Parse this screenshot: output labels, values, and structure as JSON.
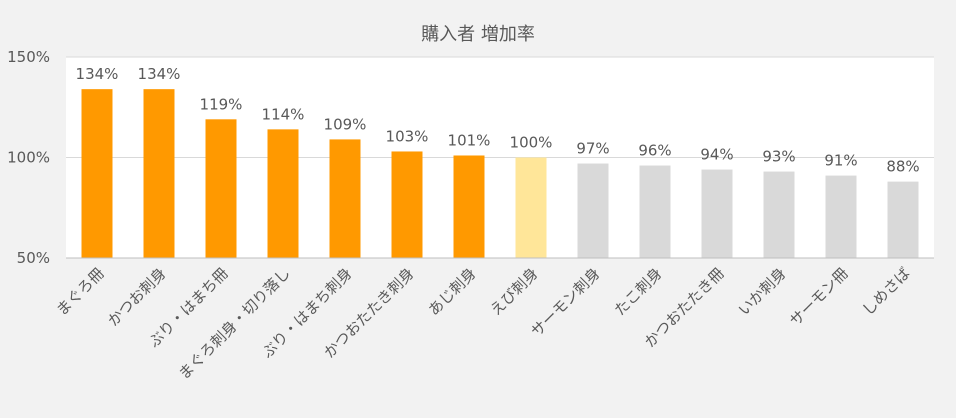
{
  "chart_data": {
    "type": "bar",
    "title": "購入者 増加率",
    "categories": [
      "まぐろ冊",
      "かつお刺身",
      "ぶり・はまち冊",
      "まぐろ刺身・切り落し",
      "ぶり・はまち刺身",
      "かつおたたき刺身",
      "あじ刺身",
      "えび刺身",
      "サーモン刺身",
      "たこ刺身",
      "かつおたたき冊",
      "いか刺身",
      "サーモン冊",
      "しめさば"
    ],
    "values": [
      134,
      134,
      119,
      114,
      109,
      103,
      101,
      100,
      97,
      96,
      94,
      93,
      91,
      88
    ],
    "data_labels": [
      "134%",
      "134%",
      "119%",
      "114%",
      "109%",
      "103%",
      "101%",
      "100%",
      "97%",
      "96%",
      "94%",
      "93%",
      "91%",
      "88%"
    ],
    "colors": [
      "#ff9900",
      "#ff9900",
      "#ff9900",
      "#ff9900",
      "#ff9900",
      "#ff9900",
      "#ff9900",
      "#ffe699",
      "#d9d9d9",
      "#d9d9d9",
      "#d9d9d9",
      "#d9d9d9",
      "#d9d9d9",
      "#d9d9d9"
    ],
    "ylim": [
      50,
      150
    ],
    "yticks": [
      50,
      100,
      150
    ],
    "ytick_labels": [
      "50%",
      "100%",
      "150%"
    ],
    "grid": true,
    "legend": false
  }
}
